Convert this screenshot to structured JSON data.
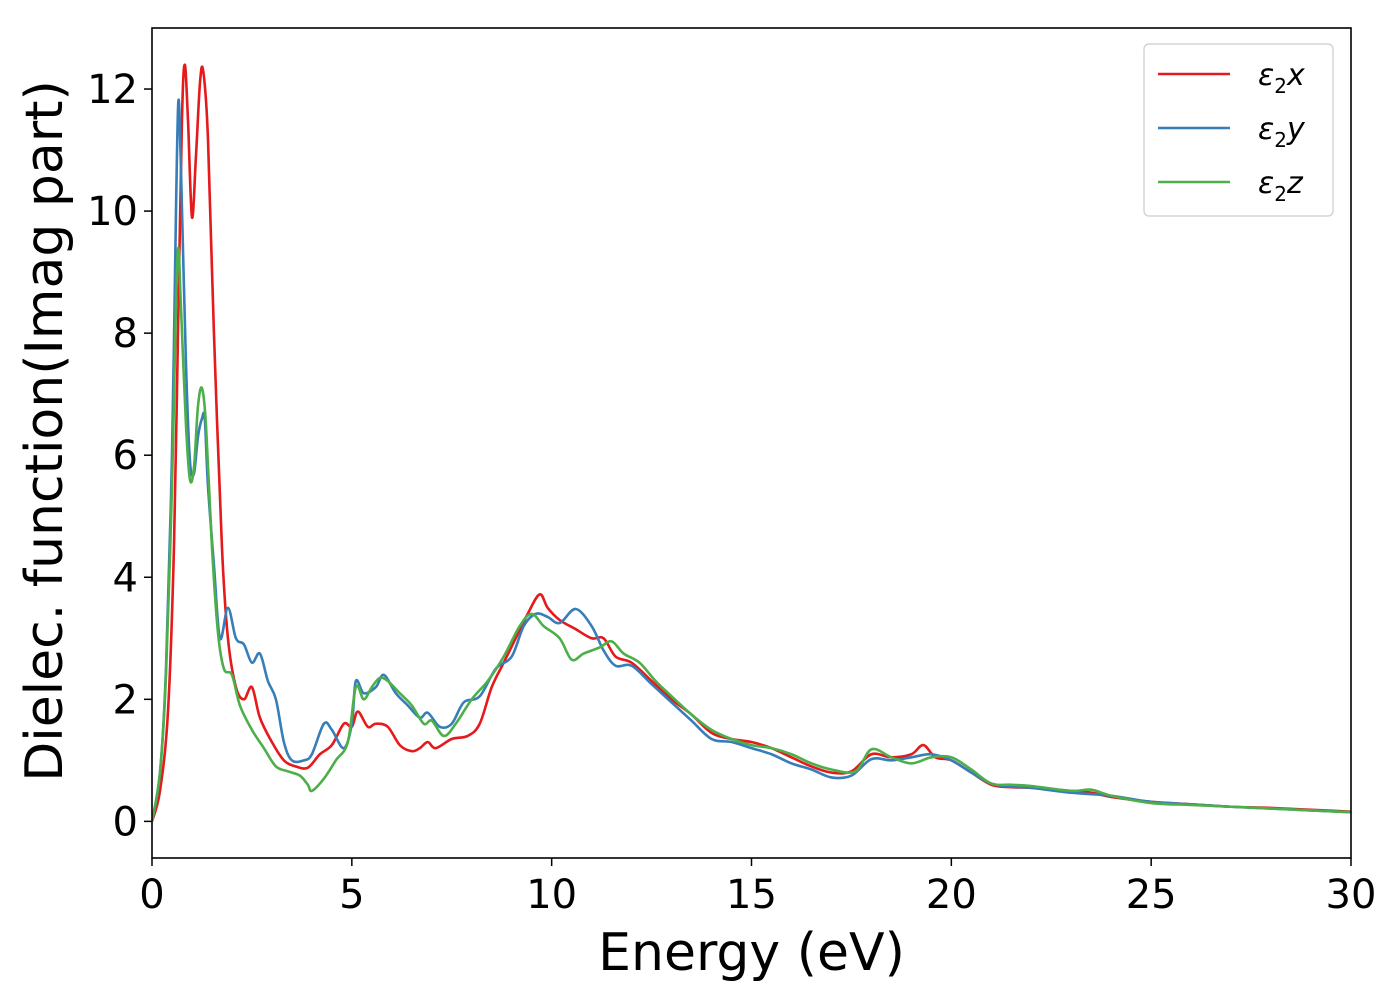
{
  "chart_data": {
    "type": "line",
    "xlabel": "Energy (eV)",
    "ylabel": "Dielec. function(Imag part)",
    "xlim": [
      0,
      30
    ],
    "ylim": [
      -0.6,
      13.0
    ],
    "xticks": [
      0,
      5,
      10,
      15,
      20,
      25,
      30
    ],
    "yticks": [
      0,
      2,
      4,
      6,
      8,
      10,
      12
    ],
    "grid": false,
    "legend_position": "top-right",
    "series": [
      {
        "name": "ε2x",
        "legend": {
          "base": "ε",
          "sub": "2",
          "var": "x"
        },
        "color": "#e41a1c",
        "points": [
          [
            0,
            0
          ],
          [
            0.2,
            0.5
          ],
          [
            0.4,
            1.8
          ],
          [
            0.55,
            4.5
          ],
          [
            0.65,
            8.0
          ],
          [
            0.75,
            11.5
          ],
          [
            0.82,
            12.4
          ],
          [
            0.9,
            11.5
          ],
          [
            1.0,
            9.9
          ],
          [
            1.1,
            10.9
          ],
          [
            1.2,
            12.1
          ],
          [
            1.28,
            12.3
          ],
          [
            1.4,
            11.2
          ],
          [
            1.55,
            8.0
          ],
          [
            1.75,
            4.5
          ],
          [
            1.9,
            3.0
          ],
          [
            2.1,
            2.2
          ],
          [
            2.3,
            2.0
          ],
          [
            2.5,
            2.2
          ],
          [
            2.7,
            1.7
          ],
          [
            3.0,
            1.3
          ],
          [
            3.3,
            1.0
          ],
          [
            3.6,
            0.9
          ],
          [
            3.9,
            0.88
          ],
          [
            4.2,
            1.1
          ],
          [
            4.5,
            1.25
          ],
          [
            4.8,
            1.6
          ],
          [
            5.0,
            1.55
          ],
          [
            5.15,
            1.8
          ],
          [
            5.4,
            1.55
          ],
          [
            5.6,
            1.6
          ],
          [
            5.9,
            1.55
          ],
          [
            6.2,
            1.25
          ],
          [
            6.5,
            1.15
          ],
          [
            6.7,
            1.2
          ],
          [
            6.9,
            1.3
          ],
          [
            7.1,
            1.2
          ],
          [
            7.5,
            1.35
          ],
          [
            7.9,
            1.4
          ],
          [
            8.2,
            1.6
          ],
          [
            8.5,
            2.2
          ],
          [
            8.8,
            2.6
          ],
          [
            9.1,
            3.0
          ],
          [
            9.4,
            3.4
          ],
          [
            9.7,
            3.72
          ],
          [
            9.9,
            3.5
          ],
          [
            10.2,
            3.3
          ],
          [
            10.6,
            3.15
          ],
          [
            11.0,
            3.0
          ],
          [
            11.3,
            3.0
          ],
          [
            11.6,
            2.7
          ],
          [
            12.0,
            2.6
          ],
          [
            12.5,
            2.3
          ],
          [
            13.0,
            2.0
          ],
          [
            13.5,
            1.75
          ],
          [
            14.0,
            1.45
          ],
          [
            14.5,
            1.35
          ],
          [
            15.0,
            1.3
          ],
          [
            15.5,
            1.2
          ],
          [
            16.0,
            1.05
          ],
          [
            16.5,
            0.9
          ],
          [
            17.0,
            0.8
          ],
          [
            17.5,
            0.82
          ],
          [
            18.0,
            1.1
          ],
          [
            18.5,
            1.05
          ],
          [
            19.0,
            1.1
          ],
          [
            19.3,
            1.25
          ],
          [
            19.6,
            1.05
          ],
          [
            20.0,
            1.0
          ],
          [
            20.5,
            0.8
          ],
          [
            21.0,
            0.6
          ],
          [
            21.5,
            0.56
          ],
          [
            22.0,
            0.55
          ],
          [
            23.0,
            0.5
          ],
          [
            23.5,
            0.47
          ],
          [
            24.0,
            0.4
          ],
          [
            25.0,
            0.32
          ],
          [
            26.0,
            0.28
          ],
          [
            27.0,
            0.24
          ],
          [
            28.0,
            0.22
          ],
          [
            29.0,
            0.19
          ],
          [
            30.0,
            0.16
          ]
        ]
      },
      {
        "name": "ε2y",
        "legend": {
          "base": "ε",
          "sub": "2",
          "var": "y"
        },
        "color": "#377eb8",
        "points": [
          [
            0,
            0
          ],
          [
            0.2,
            0.8
          ],
          [
            0.35,
            2.5
          ],
          [
            0.5,
            6.0
          ],
          [
            0.6,
            10.0
          ],
          [
            0.66,
            11.8
          ],
          [
            0.72,
            10.8
          ],
          [
            0.85,
            7.5
          ],
          [
            0.95,
            5.9
          ],
          [
            1.05,
            5.7
          ],
          [
            1.15,
            6.3
          ],
          [
            1.25,
            6.6
          ],
          [
            1.32,
            6.6
          ],
          [
            1.4,
            5.5
          ],
          [
            1.55,
            4.2
          ],
          [
            1.7,
            3.0
          ],
          [
            1.9,
            3.5
          ],
          [
            2.1,
            3.0
          ],
          [
            2.3,
            2.9
          ],
          [
            2.5,
            2.6
          ],
          [
            2.7,
            2.75
          ],
          [
            2.9,
            2.3
          ],
          [
            3.1,
            2.0
          ],
          [
            3.3,
            1.3
          ],
          [
            3.5,
            1.0
          ],
          [
            3.8,
            1.0
          ],
          [
            4.0,
            1.1
          ],
          [
            4.3,
            1.6
          ],
          [
            4.5,
            1.5
          ],
          [
            4.8,
            1.2
          ],
          [
            5.0,
            1.6
          ],
          [
            5.1,
            2.3
          ],
          [
            5.3,
            2.1
          ],
          [
            5.6,
            2.2
          ],
          [
            5.8,
            2.4
          ],
          [
            6.1,
            2.1
          ],
          [
            6.4,
            1.9
          ],
          [
            6.7,
            1.7
          ],
          [
            6.9,
            1.78
          ],
          [
            7.2,
            1.55
          ],
          [
            7.5,
            1.6
          ],
          [
            7.8,
            1.95
          ],
          [
            8.2,
            2.05
          ],
          [
            8.6,
            2.5
          ],
          [
            9.0,
            2.7
          ],
          [
            9.3,
            3.2
          ],
          [
            9.6,
            3.4
          ],
          [
            9.9,
            3.35
          ],
          [
            10.2,
            3.25
          ],
          [
            10.6,
            3.48
          ],
          [
            11.0,
            3.2
          ],
          [
            11.3,
            2.8
          ],
          [
            11.6,
            2.55
          ],
          [
            12.0,
            2.55
          ],
          [
            12.5,
            2.25
          ],
          [
            13.0,
            1.95
          ],
          [
            13.5,
            1.65
          ],
          [
            14.0,
            1.35
          ],
          [
            14.5,
            1.3
          ],
          [
            15.0,
            1.2
          ],
          [
            15.5,
            1.1
          ],
          [
            16.0,
            0.95
          ],
          [
            16.5,
            0.85
          ],
          [
            17.0,
            0.72
          ],
          [
            17.5,
            0.75
          ],
          [
            18.0,
            1.02
          ],
          [
            18.5,
            1.0
          ],
          [
            19.0,
            1.05
          ],
          [
            19.5,
            1.1
          ],
          [
            20.0,
            1.0
          ],
          [
            20.5,
            0.8
          ],
          [
            21.0,
            0.62
          ],
          [
            21.5,
            0.57
          ],
          [
            22.0,
            0.55
          ],
          [
            23.0,
            0.47
          ],
          [
            24.0,
            0.42
          ],
          [
            25.0,
            0.32
          ],
          [
            26.0,
            0.28
          ],
          [
            27.0,
            0.24
          ],
          [
            28.0,
            0.21
          ],
          [
            29.0,
            0.18
          ],
          [
            30.0,
            0.15
          ]
        ]
      },
      {
        "name": "ε2z",
        "legend": {
          "base": "ε",
          "sub": "2",
          "var": "z"
        },
        "color": "#4daf4a",
        "points": [
          [
            0,
            0
          ],
          [
            0.2,
            0.8
          ],
          [
            0.35,
            2.4
          ],
          [
            0.5,
            5.5
          ],
          [
            0.6,
            8.5
          ],
          [
            0.66,
            9.4
          ],
          [
            0.72,
            8.5
          ],
          [
            0.85,
            6.5
          ],
          [
            0.95,
            5.6
          ],
          [
            1.05,
            5.8
          ],
          [
            1.15,
            6.8
          ],
          [
            1.25,
            7.1
          ],
          [
            1.35,
            6.5
          ],
          [
            1.5,
            4.5
          ],
          [
            1.65,
            3.1
          ],
          [
            1.8,
            2.5
          ],
          [
            2.0,
            2.4
          ],
          [
            2.2,
            1.9
          ],
          [
            2.5,
            1.5
          ],
          [
            2.8,
            1.2
          ],
          [
            3.1,
            0.9
          ],
          [
            3.4,
            0.82
          ],
          [
            3.7,
            0.75
          ],
          [
            3.9,
            0.6
          ],
          [
            4.0,
            0.5
          ],
          [
            4.3,
            0.7
          ],
          [
            4.6,
            1.0
          ],
          [
            4.9,
            1.3
          ],
          [
            5.1,
            2.2
          ],
          [
            5.3,
            2.0
          ],
          [
            5.5,
            2.2
          ],
          [
            5.7,
            2.35
          ],
          [
            5.9,
            2.3
          ],
          [
            6.2,
            2.1
          ],
          [
            6.5,
            1.9
          ],
          [
            6.8,
            1.6
          ],
          [
            7.0,
            1.65
          ],
          [
            7.3,
            1.4
          ],
          [
            7.6,
            1.6
          ],
          [
            8.0,
            2.0
          ],
          [
            8.4,
            2.3
          ],
          [
            8.8,
            2.7
          ],
          [
            9.2,
            3.2
          ],
          [
            9.5,
            3.4
          ],
          [
            9.8,
            3.2
          ],
          [
            10.2,
            3.0
          ],
          [
            10.5,
            2.65
          ],
          [
            10.8,
            2.75
          ],
          [
            11.2,
            2.85
          ],
          [
            11.5,
            2.95
          ],
          [
            11.8,
            2.75
          ],
          [
            12.2,
            2.6
          ],
          [
            12.6,
            2.3
          ],
          [
            13.0,
            2.05
          ],
          [
            13.5,
            1.75
          ],
          [
            14.0,
            1.5
          ],
          [
            14.5,
            1.35
          ],
          [
            15.0,
            1.25
          ],
          [
            15.5,
            1.2
          ],
          [
            16.0,
            1.1
          ],
          [
            16.5,
            0.95
          ],
          [
            17.0,
            0.85
          ],
          [
            17.6,
            0.82
          ],
          [
            18.0,
            1.18
          ],
          [
            18.5,
            1.05
          ],
          [
            19.0,
            0.95
          ],
          [
            19.5,
            1.05
          ],
          [
            20.0,
            1.05
          ],
          [
            20.5,
            0.85
          ],
          [
            21.0,
            0.62
          ],
          [
            21.5,
            0.6
          ],
          [
            22.0,
            0.58
          ],
          [
            23.0,
            0.5
          ],
          [
            23.5,
            0.52
          ],
          [
            24.0,
            0.42
          ],
          [
            25.0,
            0.3
          ],
          [
            26.0,
            0.27
          ],
          [
            27.0,
            0.24
          ],
          [
            28.0,
            0.21
          ],
          [
            29.0,
            0.18
          ],
          [
            30.0,
            0.15
          ]
        ]
      }
    ]
  }
}
